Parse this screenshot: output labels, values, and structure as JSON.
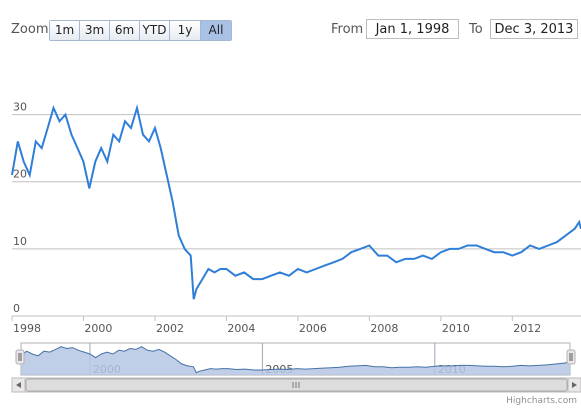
{
  "toolbar": {
    "zoom_label": "Zoom",
    "range_buttons": [
      {
        "label": "1m",
        "selected": false
      },
      {
        "label": "3m",
        "selected": false
      },
      {
        "label": "6m",
        "selected": false
      },
      {
        "label": "YTD",
        "selected": false
      },
      {
        "label": "1y",
        "selected": false
      },
      {
        "label": "All",
        "selected": true
      }
    ],
    "from_label": "From",
    "from_value": "Jan 1, 1998",
    "to_label": "To",
    "to_value": "Dec 3, 2013"
  },
  "credits": "Highcharts.com",
  "colors": {
    "line": "#2f7ed8",
    "navigator_fill": "#b5c7e3",
    "navigator_line": "#4572a7",
    "grid": "#c0c0c0",
    "selected_button": "#aac1e6"
  },
  "chart_data": {
    "type": "line",
    "title": "",
    "xlabel": "",
    "ylabel": "",
    "xlim": [
      "1998-01-01",
      "2013-12-03"
    ],
    "ylim": [
      0,
      35
    ],
    "yticks": [
      0,
      10,
      20,
      30
    ],
    "xticks": [
      "1998",
      "2000",
      "2002",
      "2004",
      "2006",
      "2008",
      "2010",
      "2012"
    ],
    "grid": true,
    "legend": "none",
    "series": [
      {
        "x": [
          "1998-01-01",
          "1998-03-01",
          "1998-05-01",
          "1998-07-01",
          "1998-09-01",
          "1998-11-01",
          "1999-01-01",
          "1999-03-01",
          "1999-05-01",
          "1999-07-01",
          "1999-09-01",
          "1999-11-01",
          "2000-01-01",
          "2000-03-01",
          "2000-05-01",
          "2000-07-01",
          "2000-09-01",
          "2000-11-01",
          "2001-01-01",
          "2001-03-01",
          "2001-05-01",
          "2001-07-01",
          "2001-09-01",
          "2001-11-01",
          "2002-01-01",
          "2002-03-01",
          "2002-05-01",
          "2002-07-01",
          "2002-09-01",
          "2002-11-01",
          "2003-01-01",
          "2003-02-01",
          "2003-03-01",
          "2003-05-01",
          "2003-07-01",
          "2003-09-01",
          "2003-11-01",
          "2004-01-01",
          "2004-04-01",
          "2004-07-01",
          "2004-10-01",
          "2005-01-01",
          "2005-04-01",
          "2005-07-01",
          "2005-10-01",
          "2006-01-01",
          "2006-04-01",
          "2006-07-01",
          "2006-10-01",
          "2007-01-01",
          "2007-04-01",
          "2007-07-01",
          "2007-10-01",
          "2008-01-01",
          "2008-04-01",
          "2008-07-01",
          "2008-10-01",
          "2009-01-01",
          "2009-04-01",
          "2009-07-01",
          "2009-10-01",
          "2010-01-01",
          "2010-04-01",
          "2010-07-01",
          "2010-10-01",
          "2011-01-01",
          "2011-04-01",
          "2011-07-01",
          "2011-10-01",
          "2012-01-01",
          "2012-04-01",
          "2012-07-01",
          "2012-10-01",
          "2013-01-01",
          "2013-04-01",
          "2013-07-01",
          "2013-10-01",
          "2013-11-15",
          "2013-12-03"
        ],
        "y": [
          21,
          26,
          23,
          21,
          26,
          25,
          28,
          31,
          29,
          30,
          27,
          25,
          23,
          19,
          23,
          25,
          23,
          27,
          26,
          29,
          28,
          31,
          27,
          26,
          28,
          25,
          21,
          17,
          12,
          10,
          9,
          2.5,
          4,
          5.5,
          7,
          6.5,
          7,
          7,
          6,
          6.5,
          5.5,
          5.5,
          6,
          6.5,
          6,
          7,
          6.5,
          7,
          7.5,
          8,
          8.5,
          9.5,
          10,
          10.5,
          9,
          9,
          8,
          8.5,
          8.5,
          9,
          8.5,
          9.5,
          10,
          10,
          10.5,
          10.5,
          10,
          9.5,
          9.5,
          9,
          9.5,
          10.5,
          10,
          10.5,
          11,
          12,
          13,
          14,
          13
        ]
      }
    ]
  }
}
